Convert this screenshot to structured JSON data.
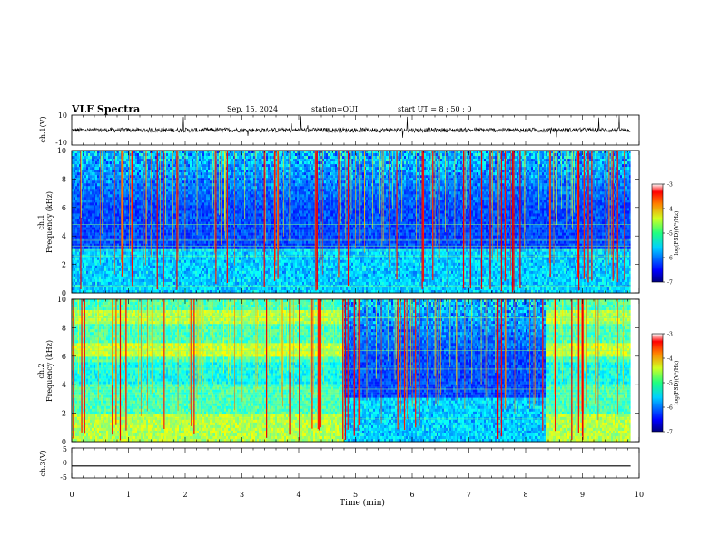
{
  "header": {
    "title": "VLF Spectra",
    "date": "Sep. 15, 2024",
    "station": "station=OUI",
    "start_ut": "start  UT =  8 : 50 : 0"
  },
  "chart_data": [
    {
      "type": "line",
      "name": "ch1-waveform",
      "ylabel": "ch.1(V)",
      "ylim": [
        -10,
        10
      ],
      "y_ticks": [
        "10",
        "-10"
      ],
      "xlim": [
        0,
        10
      ],
      "data_end_min": 9.85,
      "mean_level_V": 0,
      "noise_amplitude_V": 3
    },
    {
      "type": "heatmap",
      "name": "ch1-spectrogram",
      "ylabel_line1": "ch.1",
      "ylabel_line2": "Frequency (kHz)",
      "ylim": [
        0,
        10
      ],
      "y_ticks": [
        "0",
        "2",
        "4",
        "6",
        "8",
        "10"
      ],
      "xlim": [
        0,
        10
      ],
      "data_end_min": 9.85,
      "colorbar": {
        "min": -7,
        "max": -3,
        "ticks": [
          "-3",
          "-4",
          "-5",
          "-6",
          "-7"
        ],
        "label": "log(PSD)(V²/Hz)"
      }
    },
    {
      "type": "heatmap",
      "name": "ch2-spectrogram",
      "ylabel_line1": "ch.2",
      "ylabel_line2": "Frequency (kHz)",
      "ylim": [
        0,
        10
      ],
      "y_ticks": [
        "0",
        "2",
        "4",
        "6",
        "8",
        "10"
      ],
      "xlim": [
        0,
        10
      ],
      "data_end_min": 9.85,
      "quiet_interval_min": [
        4.8,
        8.35
      ],
      "colorbar": {
        "min": -7,
        "max": -3,
        "ticks": [
          "-3",
          "-4",
          "-5",
          "-6",
          "-7"
        ],
        "label": "log(PSD)(V²/Hz)"
      }
    },
    {
      "type": "line",
      "name": "ch3-waveform",
      "ylabel": "ch.3(V)",
      "ylim": [
        -5,
        5
      ],
      "y_ticks": [
        "5",
        "0",
        "-5"
      ],
      "xlim": [
        0,
        10
      ],
      "data_end_min": 9.85,
      "constant_level_V": -1
    }
  ],
  "x_axis": {
    "label": "Time (min)",
    "ticks": [
      "0",
      "1",
      "2",
      "3",
      "4",
      "5",
      "6",
      "7",
      "8",
      "9",
      "10"
    ]
  }
}
